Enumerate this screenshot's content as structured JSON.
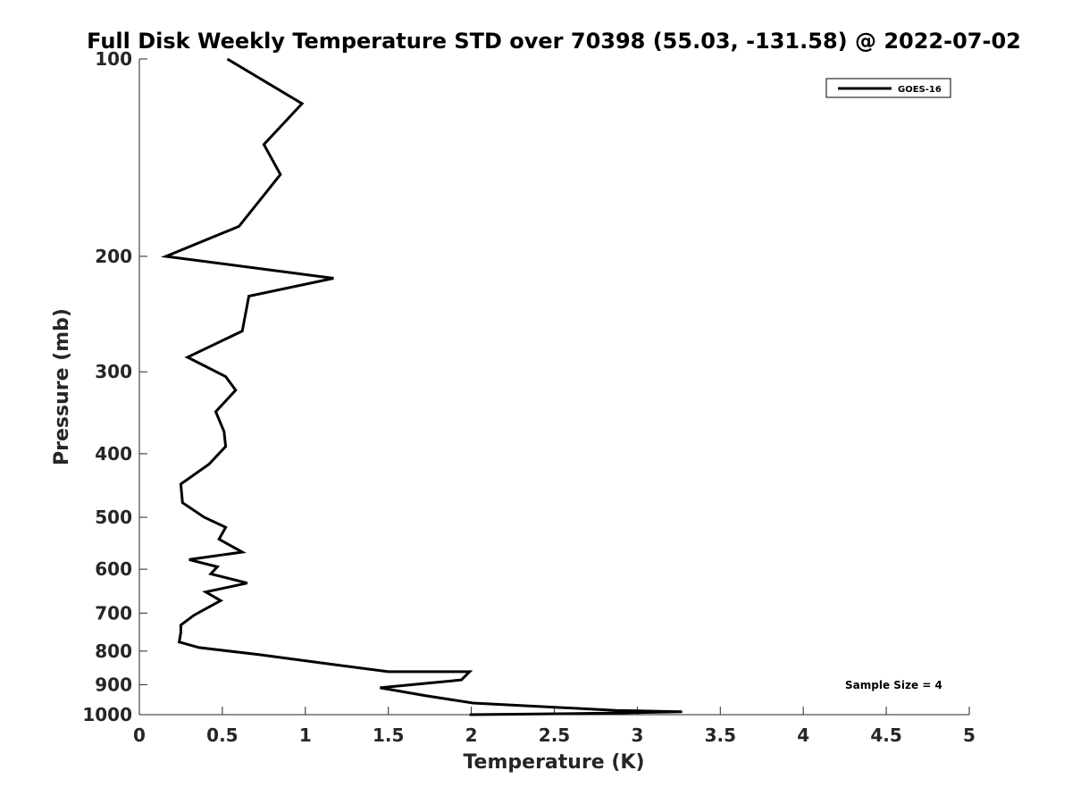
{
  "chart_data": {
    "type": "line",
    "title": "Full Disk Weekly Temperature STD over 70398 (55.03, -131.58) @ 2022-07-02",
    "xlabel": "Temperature (K)",
    "ylabel": "Pressure (mb)",
    "xlim": [
      0,
      5
    ],
    "ylim": [
      100,
      1000
    ],
    "y_scale": "log",
    "y_reversed": true,
    "x_ticks": [
      "0",
      "0.5",
      "1",
      "1.5",
      "2",
      "2.5",
      "3",
      "3.5",
      "4",
      "4.5",
      "5"
    ],
    "y_ticks": [
      "100",
      "200",
      "300",
      "400",
      "500",
      "600",
      "700",
      "800",
      "900",
      "1000"
    ],
    "grid": false,
    "legend_position": "top-right",
    "annotation": "Sample Size = 4",
    "series": [
      {
        "name": "GOES-16",
        "color": "#000000",
        "x": [
          0.53,
          0.98,
          0.75,
          0.85,
          0.6,
          0.16,
          1.17,
          0.66,
          0.62,
          0.29,
          0.52,
          0.58,
          0.46,
          0.51,
          0.52,
          0.42,
          0.25,
          0.26,
          0.39,
          0.52,
          0.48,
          0.62,
          0.3,
          0.47,
          0.43,
          0.65,
          0.4,
          0.49,
          0.33,
          0.25,
          0.25,
          0.24,
          0.36,
          0.72,
          1.19,
          1.5,
          1.99,
          1.94,
          1.45,
          1.72,
          2.01,
          2.87,
          3.27,
          2.8,
          1.99
        ],
        "y": [
          100,
          117,
          135,
          150,
          180,
          200,
          216,
          230,
          260,
          285,
          305,
          320,
          345,
          370,
          390,
          415,
          445,
          475,
          500,
          518,
          540,
          565,
          580,
          595,
          610,
          630,
          650,
          670,
          705,
          730,
          750,
          775,
          790,
          810,
          840,
          860,
          860,
          885,
          910,
          935,
          960,
          985,
          990,
          995,
          1000
        ]
      }
    ]
  }
}
